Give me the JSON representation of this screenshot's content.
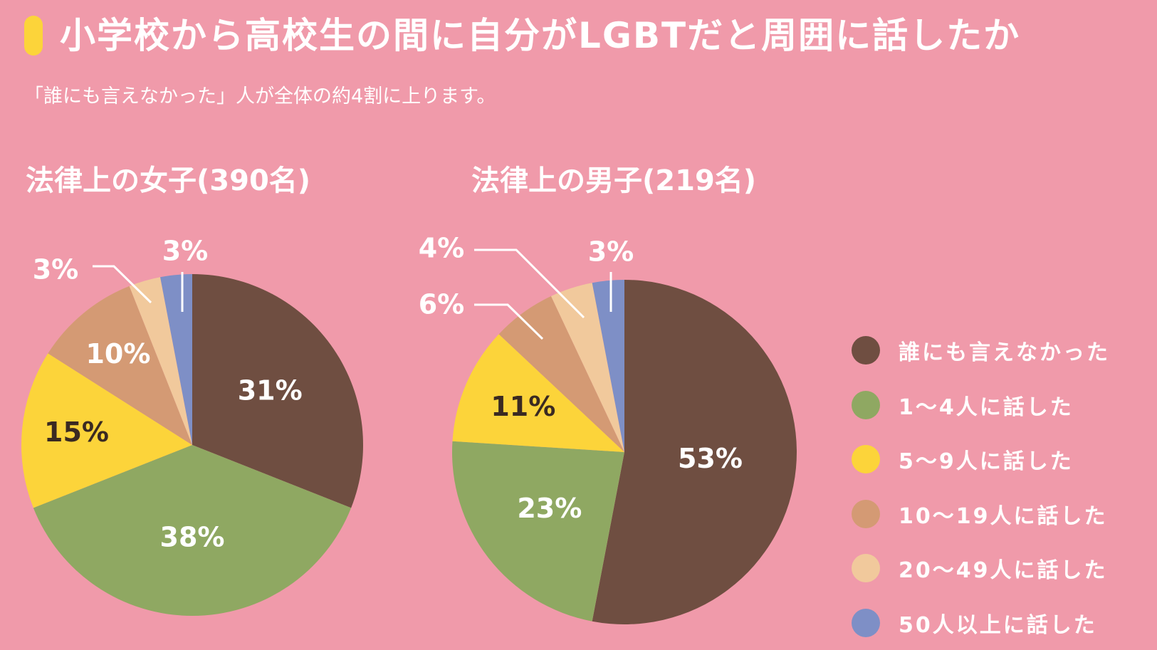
{
  "title": "小学校から高校生の間に自分がLGBTだと周囲に話したか",
  "subtitle": "「誰にも言えなかった」人が全体の約4割に上ります。",
  "colors": {
    "background": "#f09aaa",
    "accent": "#fcd43a",
    "text": "#ffffff",
    "dark_label": "#3a2a22",
    "leader_line": "#ffffff"
  },
  "legend": [
    {
      "label": "誰にも言えなかった",
      "color": "#6f4e41"
    },
    {
      "label": "1〜4人に話した",
      "color": "#8fa862"
    },
    {
      "label": "5〜9人に話した",
      "color": "#fcd43a"
    },
    {
      "label": "10〜19人に話した",
      "color": "#d49a74"
    },
    {
      "label": "20〜49人に話した",
      "color": "#f1c99c"
    },
    {
      "label": "50人以上に話した",
      "color": "#7e8fc6"
    }
  ],
  "chart_data": [
    {
      "type": "pie",
      "title": "法律上の女子(390名)",
      "categories": [
        "誰にも言えなかった",
        "1〜4人に話した",
        "5〜9人に話した",
        "10〜19人に話した",
        "20〜49人に話した",
        "50人以上に話した"
      ],
      "values": [
        31,
        38,
        15,
        10,
        3,
        3
      ],
      "labels": [
        "31%",
        "38%",
        "15%",
        "10%",
        "3%",
        "3%"
      ]
    },
    {
      "type": "pie",
      "title": "法律上の男子(219名)",
      "categories": [
        "誰にも言えなかった",
        "1〜4人に話した",
        "5〜9人に話した",
        "10〜19人に話した",
        "20〜49人に話した",
        "50人以上に話した"
      ],
      "values": [
        53,
        23,
        11,
        6,
        4,
        3
      ],
      "labels": [
        "53%",
        "23%",
        "11%",
        "6%",
        "4%",
        "3%"
      ]
    }
  ]
}
